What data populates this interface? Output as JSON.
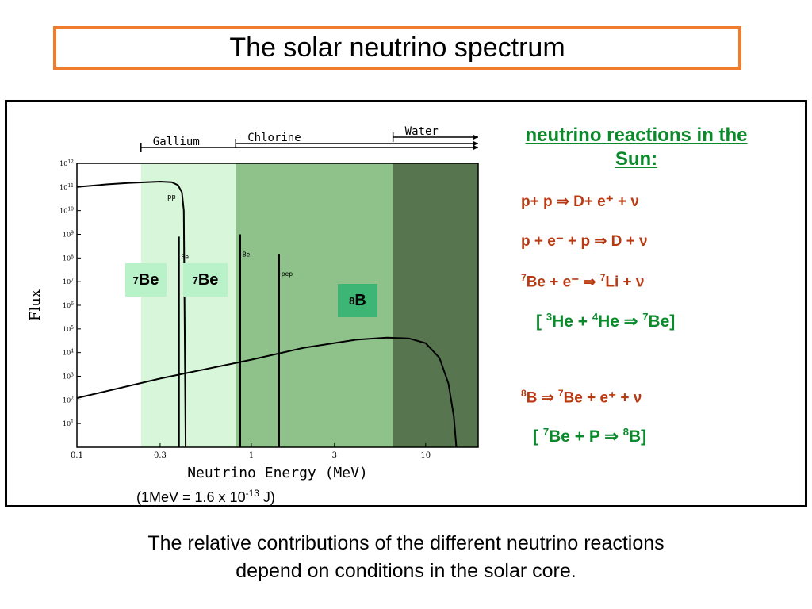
{
  "slide": {
    "title": "The solar neutrino spectrum",
    "caption_line1": "The relative contributions of the different neutrino reactions",
    "caption_line2": "depend on conditions in the solar core.",
    "conversion": {
      "prefix": "(1MeV = 1.6 x 10",
      "exp": "-13",
      "suffix": " J)"
    }
  },
  "labels": {
    "be7_low": {
      "sup": "7",
      "text": "Be"
    },
    "be7_high": {
      "sup": "7",
      "text": "Be"
    },
    "b8": {
      "sup": "8",
      "text": "B"
    }
  },
  "reactions": {
    "title_line1": "neutrino reactions in the",
    "title_line2": "Sun:",
    "r1": "p+ p  ⇒ D+ e⁺ + ν",
    "r2": "p + e⁻ + p  ⇒ D + ν",
    "r3": {
      "a": "7",
      "b": "Be + e⁻   ⇒  ",
      "c": "7",
      "d": "Li + ν"
    },
    "r4": {
      "a": "[ ",
      "b": "3",
      "c": "He + ",
      "d": "4",
      "e": "He   ⇒   ",
      "f": "7",
      "g": "Be]"
    },
    "r5": {
      "a": "8",
      "b": "B ⇒  ",
      "c": "7",
      "d": "Be + e⁺ + ν"
    },
    "r6": {
      "a": "[ ",
      "b": "7",
      "c": "Be + P  ⇒   ",
      "d": "8",
      "e": "B]"
    }
  },
  "colors": {
    "gallium_band": "#d8f7da",
    "chlorine_band": "#8fc18b",
    "water_band": "#57764f",
    "title_border": "#f07d2e",
    "reaction_red": "#b83a12",
    "reaction_green": "#0a8a2a"
  },
  "chart_data": {
    "type": "line",
    "xscale": "log",
    "yscale": "log",
    "xlabel": "Neutrino Energy (MeV)",
    "ylabel": "Flux",
    "xlim": [
      0.1,
      20
    ],
    "ylim": [
      1,
      1000000000000.0
    ],
    "x_ticks": [
      {
        "value": 0.1,
        "label": "0.1"
      },
      {
        "value": 0.3,
        "label": "0.3"
      },
      {
        "value": 1,
        "label": "1"
      },
      {
        "value": 3,
        "label": "3"
      },
      {
        "value": 10,
        "label": "10"
      }
    ],
    "y_ticks": [
      {
        "exp": 1,
        "base": "10",
        "sup": "1"
      },
      {
        "exp": 2,
        "base": "10",
        "sup": "2"
      },
      {
        "exp": 3,
        "base": "10",
        "sup": "3"
      },
      {
        "exp": 4,
        "base": "10",
        "sup": "4"
      },
      {
        "exp": 5,
        "base": "10",
        "sup": "5"
      },
      {
        "exp": 6,
        "base": "10",
        "sup": "6"
      },
      {
        "exp": 7,
        "base": "10",
        "sup": "7"
      },
      {
        "exp": 8,
        "base": "10",
        "sup": "8"
      },
      {
        "exp": 9,
        "base": "10",
        "sup": "9"
      },
      {
        "exp": 10,
        "base": "10",
        "sup": "10"
      },
      {
        "exp": 11,
        "base": "10",
        "sup": "11"
      },
      {
        "exp": 12,
        "base": "10",
        "sup": "12"
      }
    ],
    "detector_ranges": [
      {
        "name": "Gallium",
        "from": 0.233
      },
      {
        "name": "Chlorine",
        "from": 0.814
      },
      {
        "name": "Water",
        "from": 6.5
      }
    ],
    "series": [
      {
        "name": "pp",
        "label": "pp",
        "x": [
          0.1,
          0.15,
          0.2,
          0.3,
          0.35,
          0.38,
          0.4,
          0.41,
          0.42
        ],
        "y": [
          100000000000.0,
          130000000000.0,
          150000000000.0,
          170000000000.0,
          160000000000.0,
          120000000000.0,
          60000000000.0,
          10000000000.0,
          1
        ]
      },
      {
        "name": "B8",
        "x": [
          0.1,
          0.3,
          1,
          2,
          4,
          6,
          8,
          10,
          12,
          13.5,
          14.5,
          15
        ],
        "y": [
          120.0,
          800.0,
          5000.0,
          16000.0,
          35000.0,
          43000.0,
          40000.0,
          25000.0,
          6000.0,
          500,
          20,
          1
        ]
      }
    ],
    "lines": [
      {
        "name": "Be7_low",
        "x": 0.384,
        "y": 800000000.0,
        "label": "Be"
      },
      {
        "name": "Be7_high",
        "x": 0.862,
        "y": 1000000000.0,
        "label": "Be"
      },
      {
        "name": "pep",
        "x": 1.44,
        "y": 150000000.0,
        "label": "pep"
      }
    ]
  }
}
